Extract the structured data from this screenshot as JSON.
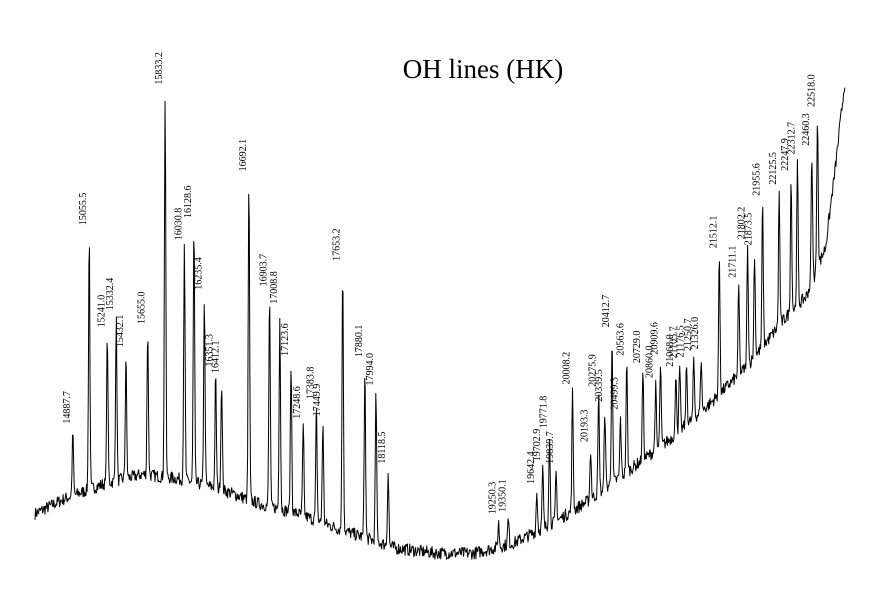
{
  "chart_data": {
    "type": "line",
    "title": "OH lines (HK)",
    "xlabel": "",
    "ylabel": "",
    "xlim": [
      14500,
      22800
    ],
    "ylim": [
      0,
      1
    ],
    "grid": false,
    "axes_visible": false,
    "line_color": "#000000",
    "labels": [
      "14887.7",
      "15055.5",
      "15241.0",
      "15332.4",
      "15432.1",
      "15655.0",
      "15833.2",
      "16030.8",
      "16128.6",
      "16235.4",
      "16351.3",
      "16412.1",
      "16692.1",
      "16903.7",
      "17008.8",
      "17123.6",
      "17248.6",
      "17383.8",
      "17449.9",
      "17653.2",
      "17880.1",
      "17994.0",
      "18118.5",
      "19350.1",
      "19250.3",
      "19642.4",
      "19702.9",
      "19771.8",
      "19839.7",
      "20008.2",
      "20193.3",
      "20275.9",
      "20339.5",
      "20412.7",
      "20499.3",
      "20563.6",
      "20729.0",
      "20860.0",
      "20909.6",
      "21068.0",
      "21105.7",
      "21176.5",
      "21250.7",
      "21326.0",
      "21512.1",
      "21711.1",
      "21802.2",
      "21873.5",
      "21955.6",
      "22125.5",
      "22247.9",
      "22312.7",
      "22460.3",
      "22518.0"
    ],
    "label_wavelengths": [
      14887.7,
      15055.5,
      15241.0,
      15332.4,
      15432.1,
      15655.0,
      15833.2,
      16030.8,
      16128.6,
      16235.4,
      16351.3,
      16412.1,
      16692.1,
      16903.7,
      17008.8,
      17123.6,
      17248.6,
      17383.8,
      17449.9,
      17653.2,
      17880.1,
      17994.0,
      18118.5,
      19350.1,
      19250.3,
      19642.4,
      19702.9,
      19771.8,
      19839.7,
      20008.2,
      20193.3,
      20275.9,
      20339.5,
      20412.7,
      20499.3,
      20563.6,
      20729.0,
      20860.0,
      20909.6,
      21068.0,
      21105.7,
      21176.5,
      21250.7,
      21326.0,
      21512.1,
      21711.1,
      21802.2,
      21873.5,
      21955.6,
      22125.5,
      22247.9,
      22312.7,
      22460.3,
      22518.0
    ],
    "baseline": [
      [
        14500,
        0.1
      ],
      [
        14800,
        0.13
      ],
      [
        15200,
        0.16
      ],
      [
        15600,
        0.18
      ],
      [
        16000,
        0.17
      ],
      [
        16400,
        0.15
      ],
      [
        16800,
        0.12
      ],
      [
        17200,
        0.1
      ],
      [
        17600,
        0.07
      ],
      [
        17900,
        0.05
      ],
      [
        18200,
        0.03
      ],
      [
        18600,
        0.02
      ],
      [
        19000,
        0.02
      ],
      [
        19400,
        0.04
      ],
      [
        19800,
        0.08
      ],
      [
        20200,
        0.13
      ],
      [
        20600,
        0.19
      ],
      [
        21000,
        0.25
      ],
      [
        21400,
        0.32
      ],
      [
        21800,
        0.4
      ],
      [
        22000,
        0.45
      ],
      [
        22200,
        0.5
      ],
      [
        22400,
        0.54
      ],
      [
        22600,
        0.64
      ],
      [
        22700,
        0.8
      ],
      [
        22800,
        0.98
      ]
    ],
    "lines": [
      [
        14887.7,
        0.13
      ],
      [
        15055.5,
        0.52
      ],
      [
        15241.0,
        0.3
      ],
      [
        15332.4,
        0.33
      ],
      [
        15432.1,
        0.25
      ],
      [
        15655.0,
        0.29
      ],
      [
        15833.2,
        0.78
      ],
      [
        16030.8,
        0.47
      ],
      [
        16128.6,
        0.52
      ],
      [
        16235.4,
        0.38
      ],
      [
        16351.3,
        0.23
      ],
      [
        16412.1,
        0.22
      ],
      [
        16692.1,
        0.65
      ],
      [
        16903.7,
        0.43
      ],
      [
        17008.8,
        0.4
      ],
      [
        17123.6,
        0.3
      ],
      [
        17248.6,
        0.18
      ],
      [
        17383.8,
        0.23
      ],
      [
        17449.9,
        0.2
      ],
      [
        17653.2,
        0.53
      ],
      [
        17880.1,
        0.35
      ],
      [
        17994.0,
        0.3
      ],
      [
        18118.5,
        0.15
      ],
      [
        19350.1,
        0.05
      ],
      [
        19250.3,
        0.05
      ],
      [
        19642.4,
        0.08
      ],
      [
        19702.9,
        0.12
      ],
      [
        19771.8,
        0.18
      ],
      [
        19839.7,
        0.1
      ],
      [
        20008.2,
        0.24
      ],
      [
        20193.3,
        0.1
      ],
      [
        20275.9,
        0.2
      ],
      [
        20339.5,
        0.16
      ],
      [
        20412.7,
        0.3
      ],
      [
        20499.3,
        0.12
      ],
      [
        20563.6,
        0.22
      ],
      [
        20729.0,
        0.18
      ],
      [
        20860.0,
        0.13
      ],
      [
        20909.6,
        0.17
      ],
      [
        21068.0,
        0.12
      ],
      [
        21105.7,
        0.13
      ],
      [
        21176.5,
        0.12
      ],
      [
        21250.7,
        0.12
      ],
      [
        21326.0,
        0.11
      ],
      [
        21512.1,
        0.28
      ],
      [
        21711.1,
        0.18
      ],
      [
        21802.2,
        0.24
      ],
      [
        21873.5,
        0.21
      ],
      [
        21955.6,
        0.29
      ],
      [
        22125.5,
        0.27
      ],
      [
        22247.9,
        0.27
      ],
      [
        22312.7,
        0.29
      ],
      [
        22460.3,
        0.26
      ],
      [
        22518.0,
        0.31
      ]
    ]
  }
}
